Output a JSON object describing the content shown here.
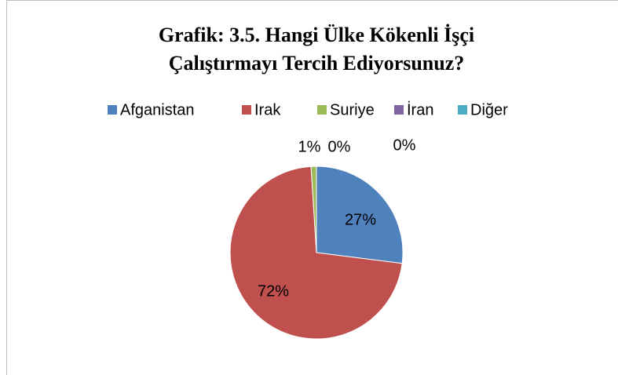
{
  "chart_data": {
    "type": "pie",
    "title": [
      "Grafik: 3.5. Hangi Ülke Kökenli İşçi",
      "Çalıştırmayı Tercih Ediyorsunuz?"
    ],
    "categories": [
      "Afganistan",
      "Irak",
      "Suriye",
      "İran",
      "Diğer"
    ],
    "values": [
      27,
      72,
      1,
      0,
      0
    ],
    "value_labels": [
      "27%",
      "72%",
      "1%",
      "0%",
      "0%"
    ],
    "colors": [
      "#4f81bd",
      "#c0504d",
      "#9bbb59",
      "#8064a2",
      "#4bacc6"
    ],
    "legend": "top"
  }
}
